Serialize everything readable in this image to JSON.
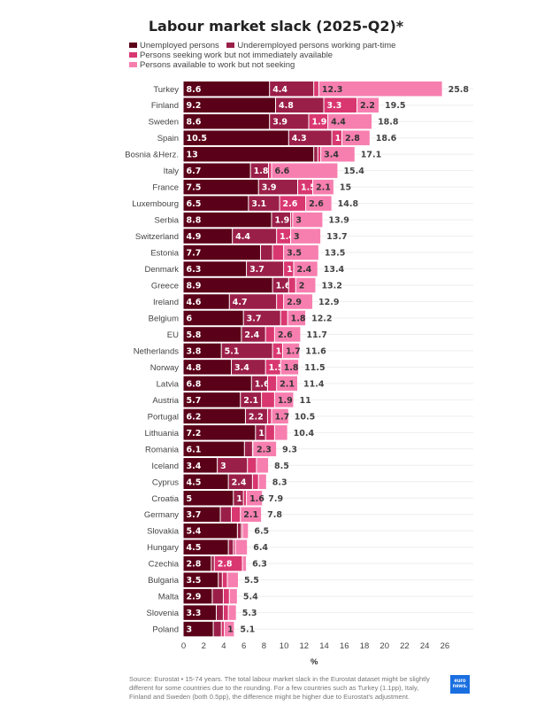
{
  "chart_data": {
    "type": "bar",
    "orientation": "horizontal",
    "stacked": true,
    "title": "Labour market slack (2025-Q2)*",
    "xlabel": "%",
    "ylabel": "",
    "xlim": [
      0,
      27
    ],
    "xticks": [
      0,
      2,
      4,
      6,
      8,
      10,
      12,
      14,
      16,
      18,
      20,
      22,
      24,
      26
    ],
    "legend_position": "top-left",
    "grid": "faint horizontal row lines",
    "series": [
      {
        "name": "Unemployed persons",
        "color": "#5a0018"
      },
      {
        "name": "Underemployed persons working part-time",
        "color": "#9a1f48"
      },
      {
        "name": "Persons seeking work but not immediately available",
        "color": "#d93770"
      },
      {
        "name": "Persons available to work but not seeking",
        "color": "#f77fb0"
      }
    ],
    "rows": [
      {
        "country": "Turkey",
        "values": [
          8.6,
          4.4,
          0.5,
          12.3
        ],
        "labels": [
          "8.6",
          "4.4",
          null,
          "12.3"
        ],
        "total": "25.8"
      },
      {
        "country": "Finland",
        "values": [
          9.2,
          4.8,
          3.3,
          2.2
        ],
        "labels": [
          "9.2",
          "4.8",
          "3.3",
          "2.2"
        ],
        "total": "19.5"
      },
      {
        "country": "Sweden",
        "values": [
          8.6,
          3.9,
          1.9,
          4.4
        ],
        "labels": [
          "8.6",
          "3.9",
          "1.9",
          "4.4"
        ],
        "total": "18.8"
      },
      {
        "country": "Spain",
        "values": [
          10.5,
          4.3,
          1,
          2.8
        ],
        "labels": [
          "10.5",
          "4.3",
          "1",
          "2.8"
        ],
        "total": "18.6"
      },
      {
        "country": "Bosnia &Herz.",
        "values": [
          13,
          0.4,
          0.3,
          3.4
        ],
        "labels": [
          "13",
          null,
          null,
          "3.4"
        ],
        "total": "17.1"
      },
      {
        "country": "Italy",
        "values": [
          6.7,
          1.8,
          0.3,
          6.6
        ],
        "labels": [
          "6.7",
          "1.8",
          null,
          "6.6"
        ],
        "total": "15.4"
      },
      {
        "country": "France",
        "values": [
          7.5,
          3.9,
          1.5,
          2.1
        ],
        "labels": [
          "7.5",
          "3.9",
          "1.5",
          "2.1"
        ],
        "total": "15"
      },
      {
        "country": "Luxembourg",
        "values": [
          6.5,
          3.1,
          2.6,
          2.6
        ],
        "labels": [
          "6.5",
          "3.1",
          "2.6",
          "2.6"
        ],
        "total": "14.8"
      },
      {
        "country": "Serbia",
        "values": [
          8.8,
          1.9,
          0.2,
          3
        ],
        "labels": [
          "8.8",
          "1.9",
          null,
          "3"
        ],
        "total": "13.9"
      },
      {
        "country": "Switzerland",
        "values": [
          4.9,
          4.4,
          1.4,
          3
        ],
        "labels": [
          "4.9",
          "4.4",
          "1.4",
          "3"
        ],
        "total": "13.7"
      },
      {
        "country": "Estonia",
        "values": [
          7.7,
          1.2,
          1.1,
          3.5
        ],
        "labels": [
          "7.7",
          null,
          null,
          "3.5"
        ],
        "total": "13.5"
      },
      {
        "country": "Denmark",
        "values": [
          6.3,
          3.7,
          1,
          2.4
        ],
        "labels": [
          "6.3",
          "3.7",
          "1",
          "2.4"
        ],
        "total": "13.4"
      },
      {
        "country": "Greece",
        "values": [
          8.9,
          1.6,
          0.7,
          2
        ],
        "labels": [
          "8.9",
          "1.6",
          null,
          "2"
        ],
        "total": "13.2"
      },
      {
        "country": "Ireland",
        "values": [
          4.6,
          4.7,
          0.7,
          2.9
        ],
        "labels": [
          "4.6",
          "4.7",
          null,
          "2.9"
        ],
        "total": "12.9"
      },
      {
        "country": "Belgium",
        "values": [
          6,
          3.7,
          0.7,
          1.8
        ],
        "labels": [
          "6",
          "3.7",
          null,
          "1.8"
        ],
        "total": "12.2"
      },
      {
        "country": "EU",
        "values": [
          5.8,
          2.4,
          0.9,
          2.6
        ],
        "labels": [
          "5.8",
          "2.4",
          null,
          "2.6"
        ],
        "total": "11.7"
      },
      {
        "country": "Netherlands",
        "values": [
          3.8,
          5.1,
          1,
          1.7
        ],
        "labels": [
          "3.8",
          "5.1",
          "1",
          "1.7"
        ],
        "total": "11.6"
      },
      {
        "country": "Norway",
        "values": [
          4.8,
          3.4,
          1.5,
          1.8
        ],
        "labels": [
          "4.8",
          "3.4",
          "1.5",
          "1.8"
        ],
        "total": "11.5"
      },
      {
        "country": "Latvia",
        "values": [
          6.8,
          1.6,
          0.9,
          2.1
        ],
        "labels": [
          "6.8",
          "1.6",
          null,
          "2.1"
        ],
        "total": "11.4"
      },
      {
        "country": "Austria",
        "values": [
          5.7,
          2.1,
          1.3,
          1.9
        ],
        "labels": [
          "5.7",
          "2.1",
          null,
          "1.9"
        ],
        "total": "11"
      },
      {
        "country": "Portugal",
        "values": [
          6.2,
          2.2,
          0.4,
          1.7
        ],
        "labels": [
          "6.2",
          "2.2",
          null,
          "1.7"
        ],
        "total": "10.5"
      },
      {
        "country": "Lithuania",
        "values": [
          7.2,
          1,
          0.9,
          1.3
        ],
        "labels": [
          "7.2",
          "1",
          null,
          null
        ],
        "total": "10.4"
      },
      {
        "country": "Romania",
        "values": [
          6.1,
          0.8,
          0.1,
          2.3
        ],
        "labels": [
          "6.1",
          null,
          null,
          "2.3"
        ],
        "total": "9.3"
      },
      {
        "country": "Iceland",
        "values": [
          3.4,
          3,
          0.9,
          1.2
        ],
        "labels": [
          "3.4",
          "3",
          null,
          null
        ],
        "total": "8.5"
      },
      {
        "country": "Cyprus",
        "values": [
          4.5,
          2.4,
          0.6,
          0.8
        ],
        "labels": [
          "4.5",
          "2.4",
          null,
          null
        ],
        "total": "8.3"
      },
      {
        "country": "Croatia",
        "values": [
          5,
          1,
          0.3,
          1.6
        ],
        "labels": [
          "5",
          "1",
          null,
          "1.6"
        ],
        "total": "7.9"
      },
      {
        "country": "Germany",
        "values": [
          3.7,
          1.1,
          0.9,
          2.1
        ],
        "labels": [
          "3.7",
          null,
          null,
          "2.1"
        ],
        "total": "7.8"
      },
      {
        "country": "Slovakia",
        "values": [
          5.4,
          0.4,
          0.1,
          0.6
        ],
        "labels": [
          "5.4",
          null,
          null,
          null
        ],
        "total": "6.5"
      },
      {
        "country": "Hungary",
        "values": [
          4.5,
          0.5,
          0.2,
          1.2
        ],
        "labels": [
          "4.5",
          null,
          null,
          null
        ],
        "total": "6.4"
      },
      {
        "country": "Czechia",
        "values": [
          2.8,
          0.3,
          2.8,
          0.4
        ],
        "labels": [
          "2.8",
          null,
          "2.8",
          null
        ],
        "total": "6.3"
      },
      {
        "country": "Bulgaria",
        "values": [
          3.5,
          0.4,
          0.5,
          1.1
        ],
        "labels": [
          "3.5",
          null,
          null,
          null
        ],
        "total": "5.5"
      },
      {
        "country": "Malta",
        "values": [
          2.9,
          1.1,
          0.6,
          0.8
        ],
        "labels": [
          "2.9",
          null,
          null,
          null
        ],
        "total": "5.4"
      },
      {
        "country": "Slovenia",
        "values": [
          3.3,
          0.7,
          0.5,
          0.8
        ],
        "labels": [
          "3.3",
          null,
          null,
          null
        ],
        "total": "5.3"
      },
      {
        "country": "Poland",
        "values": [
          3,
          0.8,
          0.3,
          1
        ],
        "labels": [
          "3",
          null,
          null,
          "1"
        ],
        "total": "5.1"
      }
    ]
  },
  "footer": {
    "source": "Source: Eurostat • 15-74 years. The total labour market slack in the Eurostat dataset might be slightly different for some countries due to the rounding. For a few countries such as Turkey (1.1pp), Italy, Finland and Sweden (both 0.5pp), the difference might be higher due to Eurostat's adjustment.",
    "logo_text": "euro news."
  }
}
